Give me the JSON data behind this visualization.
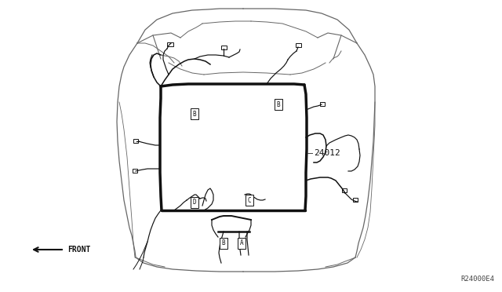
{
  "bg_color": "#ffffff",
  "line_color": "#111111",
  "thin_color": "#444444",
  "body_color": "#666666",
  "label_24012": "24012",
  "label_front": "FRONT",
  "label_ref": "R24000E4",
  "fig_width": 6.4,
  "fig_height": 3.72,
  "dpi": 100
}
